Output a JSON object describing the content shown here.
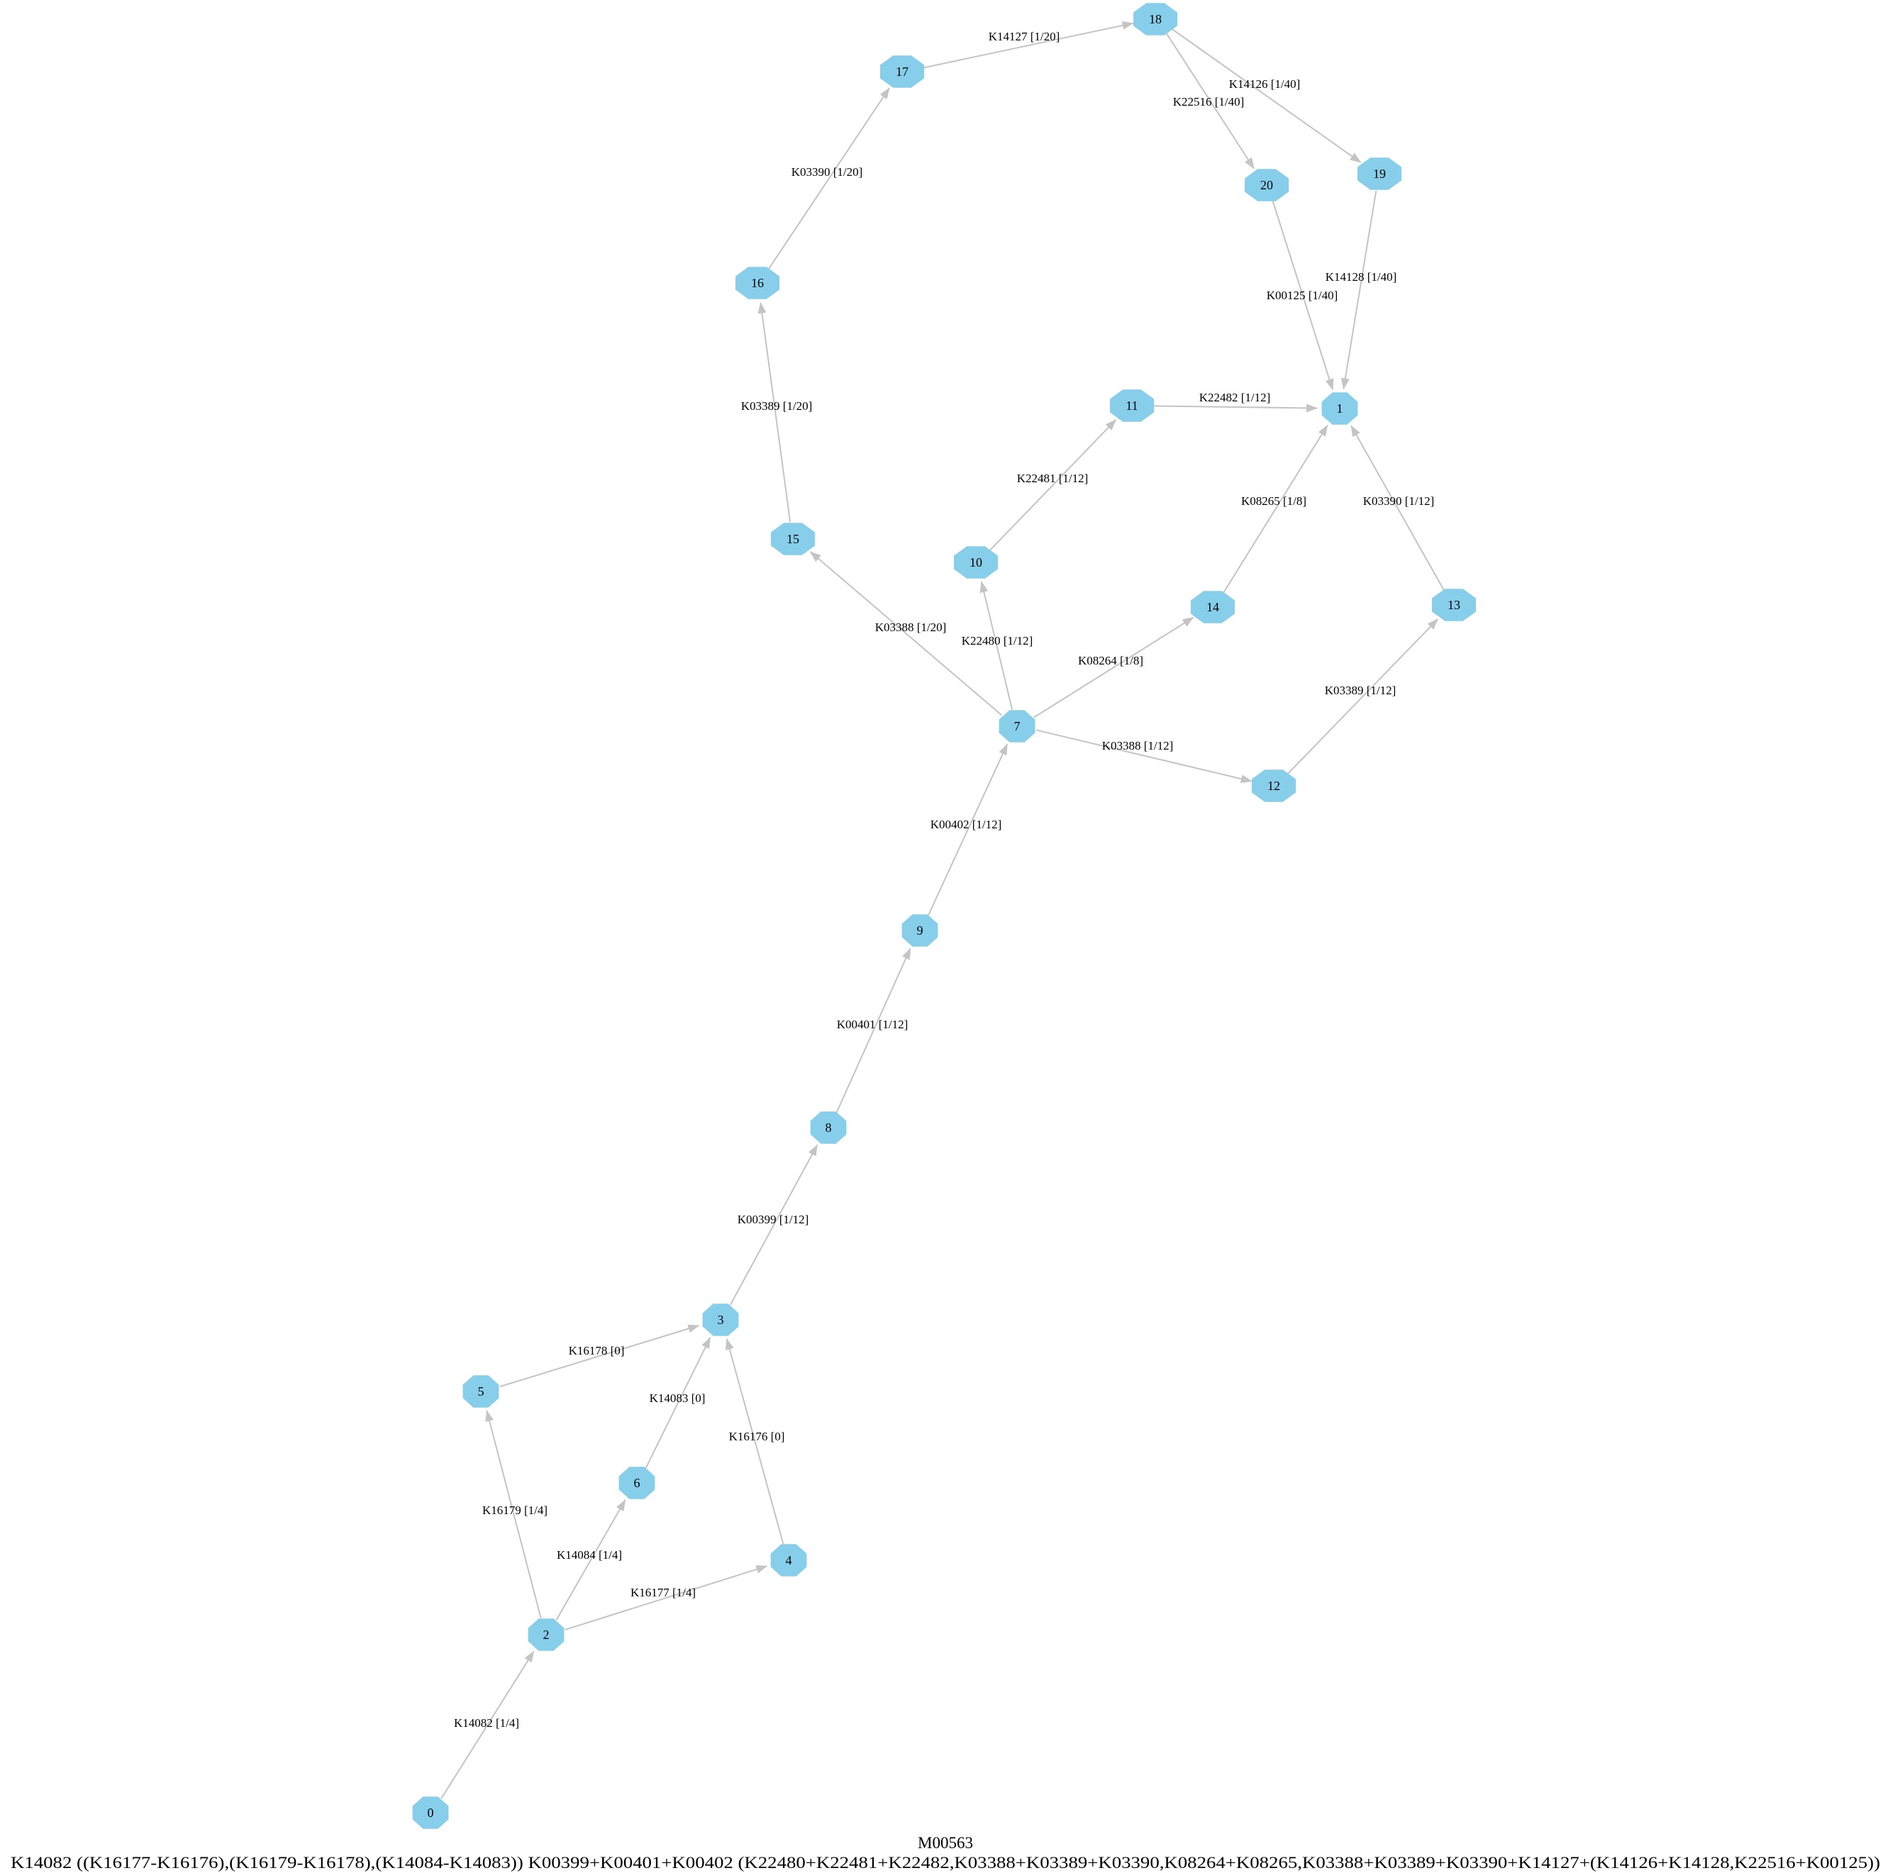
{
  "diagram": {
    "title": "M00563",
    "definition": "K14082 ((K16177-K16176),(K16179-K16178),(K14084-K14083)) K00399+K00401+K00402 (K22480+K22481+K22482,K03388+K03389+K03390,K08264+K08265,K03388+K03389+K03390+K14127+(K14126+K14128,K22516+K00125))",
    "node_color": "#87ceeb",
    "edge_color": "#c4c4c4",
    "nodes": [
      "0",
      "1",
      "2",
      "3",
      "4",
      "5",
      "6",
      "7",
      "8",
      "9",
      "10",
      "11",
      "12",
      "13",
      "14",
      "15",
      "16",
      "17",
      "18",
      "19",
      "20"
    ],
    "edges": [
      {
        "from": "0",
        "to": "2",
        "label": "K14082 [1/4]"
      },
      {
        "from": "2",
        "to": "5",
        "label": "K16179 [1/4]"
      },
      {
        "from": "2",
        "to": "6",
        "label": "K14084 [1/4]"
      },
      {
        "from": "2",
        "to": "4",
        "label": "K16177 [1/4]"
      },
      {
        "from": "5",
        "to": "3",
        "label": "K16178 [0]"
      },
      {
        "from": "6",
        "to": "3",
        "label": "K14083 [0]"
      },
      {
        "from": "4",
        "to": "3",
        "label": "K16176 [0]"
      },
      {
        "from": "3",
        "to": "8",
        "label": "K00399 [1/12]"
      },
      {
        "from": "8",
        "to": "9",
        "label": "K00401 [1/12]"
      },
      {
        "from": "9",
        "to": "7",
        "label": "K00402 [1/12]"
      },
      {
        "from": "7",
        "to": "10",
        "label": "K22480 [1/12]"
      },
      {
        "from": "10",
        "to": "11",
        "label": "K22481 [1/12]"
      },
      {
        "from": "11",
        "to": "1",
        "label": "K22482 [1/12]"
      },
      {
        "from": "7",
        "to": "12",
        "label": "K03388 [1/12]"
      },
      {
        "from": "12",
        "to": "13",
        "label": "K03389 [1/12]"
      },
      {
        "from": "13",
        "to": "1",
        "label": "K03390 [1/12]"
      },
      {
        "from": "7",
        "to": "14",
        "label": "K08264 [1/8]"
      },
      {
        "from": "14",
        "to": "1",
        "label": "K08265 [1/8]"
      },
      {
        "from": "7",
        "to": "15",
        "label": "K03388 [1/20]"
      },
      {
        "from": "15",
        "to": "16",
        "label": "K03389 [1/20]"
      },
      {
        "from": "16",
        "to": "17",
        "label": "K03390 [1/20]"
      },
      {
        "from": "17",
        "to": "18",
        "label": "K14127 [1/20]"
      },
      {
        "from": "18",
        "to": "19",
        "label": "K14126 [1/40]"
      },
      {
        "from": "18",
        "to": "20",
        "label": "K22516 [1/40]"
      },
      {
        "from": "19",
        "to": "1",
        "label": "K14128 [1/40]"
      },
      {
        "from": "20",
        "to": "1",
        "label": "K00125 [1/40]"
      }
    ]
  }
}
